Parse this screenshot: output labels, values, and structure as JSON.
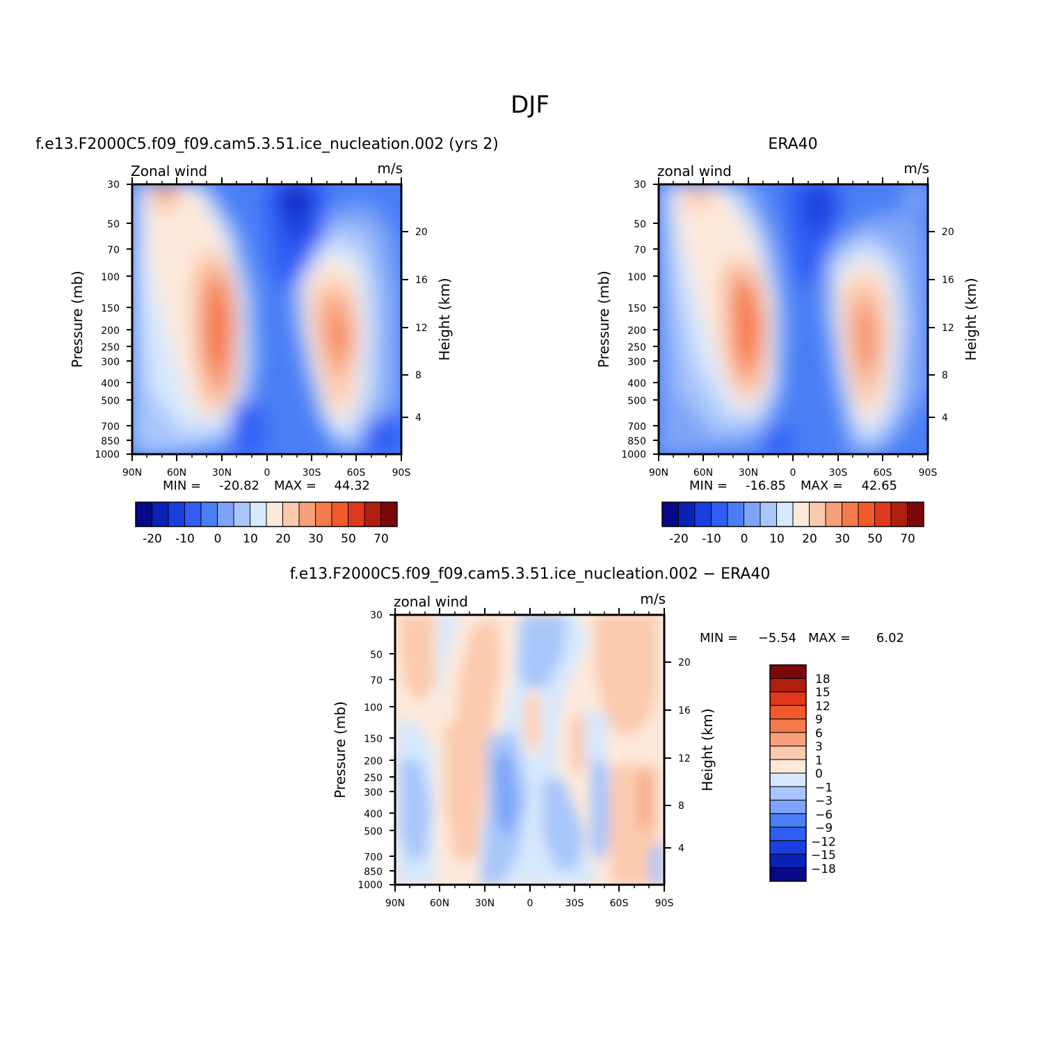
{
  "figure": {
    "title": "DJF",
    "colors": {
      "panel_palette": [
        "#08088a",
        "#0a22b8",
        "#1a3fe0",
        "#2f5df5",
        "#4a7ef5",
        "#7ea4f7",
        "#a9c6fa",
        "#d6e8fd",
        "#fde9da",
        "#fbc9ae",
        "#f7a07b",
        "#f57a4c",
        "#f35a2a",
        "#e0381a",
        "#b01e0e",
        "#7a0808"
      ],
      "diff_palette": [
        "#08088a",
        "#0a22b8",
        "#1a3fe0",
        "#2f5df5",
        "#4a7ef5",
        "#7ea4f7",
        "#a9c6fa",
        "#d6e8fd",
        "#fde9da",
        "#fbc9ae",
        "#f7a07b",
        "#f57a4c",
        "#f35a2a",
        "#e0381a",
        "#b01e0e",
        "#7a0808"
      ]
    }
  },
  "chart_data": [
    {
      "type": "heatmap",
      "title": "f.e13.F2000C5.f09_f09.cam5.3.51.ice_nucleation.002 (yrs 2)",
      "variable": "Zonal wind",
      "units": "m/s",
      "ylabel": "Pressure (mb)",
      "ylabel_right": "Height (km)",
      "xticks": [
        "90N",
        "60N",
        "30N",
        "0",
        "30S",
        "60S",
        "90S"
      ],
      "yticks": [
        "30",
        "50",
        "70",
        "100",
        "150",
        "200",
        "250",
        "300",
        "400",
        "500",
        "700",
        "850",
        "1000"
      ],
      "yticks_right": [
        "20",
        "16",
        "12",
        "8",
        "4"
      ],
      "min_label": "MIN =",
      "min": "-20.82",
      "max_label": "MAX =",
      "max": "44.32",
      "colorbar_ticks": [
        "-20",
        "-10",
        "0",
        "10",
        "20",
        "30",
        "50",
        "70"
      ],
      "jets": [
        {
          "lat": 30,
          "pressure": 200,
          "peak_wind": 44.3
        },
        {
          "lat": -50,
          "pressure": 220,
          "peak_wind": 32
        },
        {
          "lat": 75,
          "pressure": 30,
          "peak_wind": 22
        },
        {
          "lat": -15,
          "pressure": 30,
          "peak_wind": -20.8
        }
      ]
    },
    {
      "type": "heatmap",
      "title": "ERA40",
      "variable": "zonal wind",
      "units": "m/s",
      "ylabel": "Pressure (mb)",
      "ylabel_right": "Height (km)",
      "xticks": [
        "90N",
        "60N",
        "30N",
        "0",
        "30S",
        "60S",
        "90S"
      ],
      "yticks": [
        "30",
        "50",
        "70",
        "100",
        "150",
        "200",
        "250",
        "300",
        "400",
        "500",
        "700",
        "850",
        "1000"
      ],
      "yticks_right": [
        "20",
        "16",
        "12",
        "8",
        "4"
      ],
      "min_label": "MIN =",
      "min": "-16.85",
      "max_label": "MAX =",
      "max": "42.65",
      "colorbar_ticks": [
        "-20",
        "-10",
        "0",
        "10",
        "20",
        "30",
        "50",
        "70"
      ],
      "jets": [
        {
          "lat": 30,
          "pressure": 200,
          "peak_wind": 42.65
        },
        {
          "lat": -48,
          "pressure": 240,
          "peak_wind": 33
        },
        {
          "lat": 73,
          "pressure": 30,
          "peak_wind": 18
        },
        {
          "lat": -15,
          "pressure": 30,
          "peak_wind": -16.85
        }
      ]
    },
    {
      "type": "heatmap",
      "title": "f.e13.F2000C5.f09_f09.cam5.3.51.ice_nucleation.002 − ERA40",
      "variable": "zonal wind",
      "units": "m/s",
      "ylabel": "Pressure (mb)",
      "ylabel_right": "Height (km)",
      "xticks": [
        "90N",
        "60N",
        "30N",
        "0",
        "30S",
        "60S",
        "90S"
      ],
      "yticks": [
        "30",
        "50",
        "70",
        "100",
        "150",
        "200",
        "250",
        "300",
        "400",
        "500",
        "700",
        "850",
        "1000"
      ],
      "yticks_right": [
        "20",
        "16",
        "12",
        "8",
        "4"
      ],
      "min_label": "MIN =",
      "min": "−5.54",
      "max_label": "MAX =",
      "max": "6.02",
      "colorbar_ticks": [
        "18",
        "15",
        "12",
        "9",
        "6",
        "3",
        "1",
        "0",
        "−1",
        "−3",
        "−6",
        "−9",
        "−12",
        "−15",
        "−18"
      ],
      "colorbar_orientation": "vertical"
    }
  ]
}
